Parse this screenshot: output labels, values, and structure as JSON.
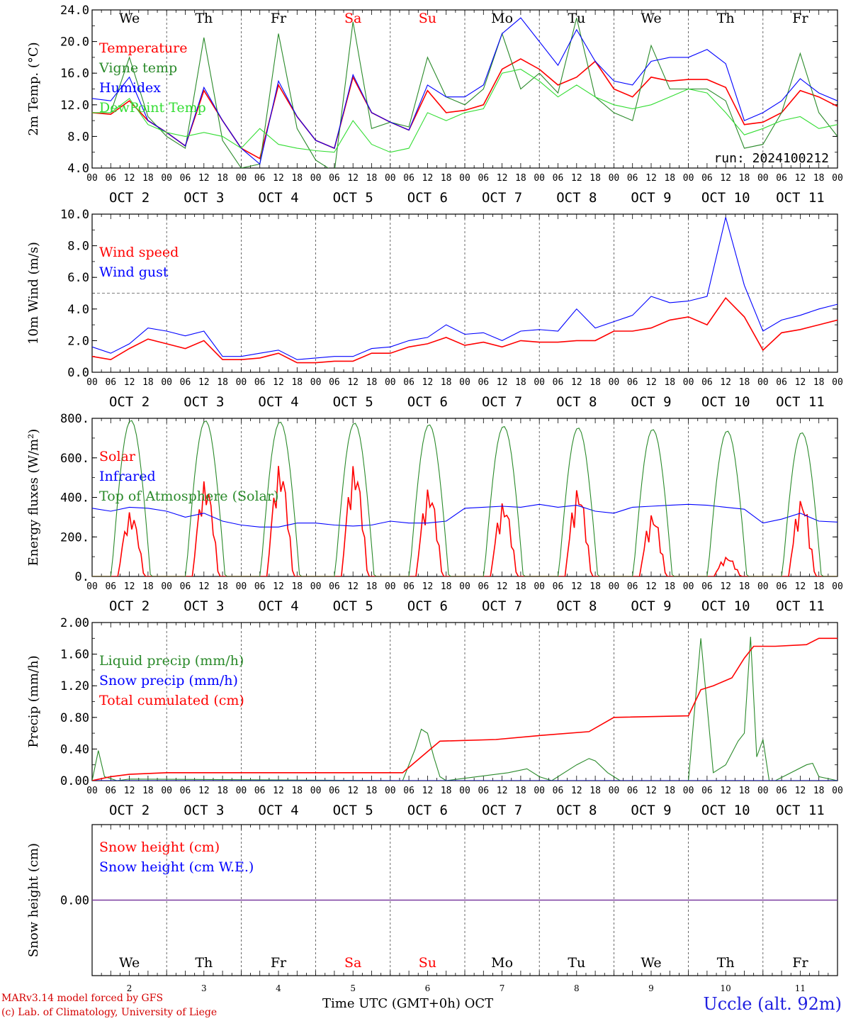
{
  "meteogram": {
    "run_label": "run: 2024100212",
    "station": "Uccle (alt. 92m)",
    "credit_line1": "MARv3.14 model forced by GFS",
    "credit_line2": "(c) Lab. of Climatology, University of Liege",
    "x_title": "Time UTC (GMT+0h) OCT",
    "hour_ticks": [
      "00",
      "06",
      "12",
      "18"
    ],
    "days": [
      {
        "weekday": "We",
        "date": "OCT  2",
        "num": "2",
        "weekend": false
      },
      {
        "weekday": "Th",
        "date": "OCT  3",
        "num": "3",
        "weekend": false
      },
      {
        "weekday": "Fr",
        "date": "OCT  4",
        "num": "4",
        "weekend": false
      },
      {
        "weekday": "Sa",
        "date": "OCT  5",
        "num": "5",
        "weekend": true
      },
      {
        "weekday": "Su",
        "date": "OCT  6",
        "num": "6",
        "weekend": true
      },
      {
        "weekday": "Mo",
        "date": "OCT  7",
        "num": "7",
        "weekend": false
      },
      {
        "weekday": "Tu",
        "date": "OCT  8",
        "num": "8",
        "weekend": false
      },
      {
        "weekday": "We",
        "date": "OCT  9",
        "num": "9",
        "weekend": false
      },
      {
        "weekday": "Th",
        "date": "OCT 10",
        "num": "10",
        "weekend": false
      },
      {
        "weekday": "Fr",
        "date": "OCT 11",
        "num": "11",
        "weekend": false
      }
    ],
    "colors": {
      "red": "#ff0000",
      "green": "#2a8a2a",
      "blue": "#0000ff",
      "lightgreen": "#33dd33",
      "weekend": "#ff0000"
    }
  },
  "chart_data": [
    {
      "type": "line",
      "ylabel": "2m Temp. (°C)",
      "ylim": [
        4,
        24
      ],
      "yticks": [
        4,
        8,
        12,
        16,
        20,
        24
      ],
      "ytick_labels": [
        "4.0",
        "8.0",
        "12.0",
        "16.0",
        "20.0",
        "24.0"
      ],
      "x_unit": "hours since OCT 2 00 UTC",
      "xlim": [
        0,
        240
      ],
      "show_weekdays": true,
      "series": [
        {
          "name": "Temperature",
          "color": "red",
          "x": [
            0,
            6,
            12,
            18,
            24,
            30,
            36,
            42,
            48,
            54,
            60,
            66,
            72,
            78,
            84,
            90,
            96,
            102,
            108,
            114,
            120,
            126,
            132,
            138,
            144,
            150,
            156,
            162,
            168,
            174,
            180,
            186,
            192,
            198,
            204,
            210,
            216,
            222,
            228,
            234,
            240
          ],
          "y": [
            11,
            10.8,
            12.5,
            10,
            8.5,
            6.8,
            13.8,
            10,
            6.5,
            5.2,
            14.5,
            10.5,
            7.5,
            6.5,
            15.5,
            11,
            9.8,
            8.8,
            13.8,
            11,
            11.3,
            12,
            16.5,
            17.8,
            16.5,
            14.5,
            15.5,
            17.5,
            14,
            13,
            15.5,
            15,
            15.2,
            15.2,
            14.2,
            9.5,
            9.8,
            11,
            13.8,
            13,
            11.8
          ]
        },
        {
          "name": "Vigne temp",
          "color": "green",
          "x": [
            0,
            6,
            12,
            18,
            24,
            30,
            36,
            42,
            48,
            54,
            60,
            66,
            72,
            78,
            84,
            90,
            96,
            102,
            108,
            114,
            120,
            126,
            132,
            138,
            144,
            150,
            156,
            162,
            168,
            174,
            180,
            186,
            192,
            198,
            204,
            210,
            216,
            222,
            228,
            234,
            240
          ],
          "y": [
            11,
            11,
            18,
            10.5,
            8,
            6.5,
            20.5,
            7.5,
            4,
            4.5,
            21,
            9,
            5,
            3.5,
            22.5,
            9,
            9.8,
            9.2,
            18,
            13,
            12,
            14,
            21,
            14,
            16,
            13.5,
            23,
            13,
            11,
            10,
            19.5,
            14,
            14,
            14,
            12.5,
            6.5,
            7,
            11,
            18.5,
            11,
            8
          ]
        },
        {
          "name": "Humidex",
          "color": "blue",
          "x": [
            0,
            6,
            12,
            18,
            24,
            30,
            36,
            42,
            48,
            54,
            60,
            66,
            72,
            78,
            84,
            90,
            96,
            102,
            108,
            114,
            120,
            126,
            132,
            138,
            144,
            150,
            156,
            162,
            168,
            174,
            180,
            186,
            192,
            198,
            204,
            210,
            216,
            222,
            228,
            234,
            240
          ],
          "y": [
            12.8,
            12.5,
            15.5,
            10,
            8.5,
            6.8,
            14.2,
            10,
            6.5,
            4.5,
            15,
            10.5,
            7.5,
            6.5,
            15.8,
            11,
            9.8,
            8.8,
            14.5,
            13,
            13,
            14.5,
            21,
            23,
            20,
            17,
            21.5,
            17.5,
            15,
            14.5,
            17.5,
            18,
            18,
            19,
            17.2,
            10,
            11,
            12.5,
            15.3,
            13.5,
            12.5
          ]
        },
        {
          "name": "DewPoint Temp",
          "color": "lightgreen",
          "x": [
            0,
            6,
            12,
            18,
            24,
            30,
            36,
            42,
            48,
            54,
            60,
            66,
            72,
            78,
            84,
            90,
            96,
            102,
            108,
            114,
            120,
            126,
            132,
            138,
            144,
            150,
            156,
            162,
            168,
            174,
            180,
            186,
            192,
            198,
            204,
            210,
            216,
            222,
            228,
            234,
            240
          ],
          "y": [
            11,
            11,
            12.8,
            9.5,
            8.5,
            8,
            8.5,
            8,
            6.5,
            9,
            7,
            6.5,
            6.2,
            6,
            10,
            7,
            6,
            6.5,
            11,
            10,
            11,
            11.5,
            16,
            16.5,
            15,
            13,
            14.5,
            13,
            12,
            11.5,
            12,
            13,
            14,
            13.5,
            11,
            8.2,
            9,
            10,
            10.5,
            9,
            9.5
          ]
        }
      ]
    },
    {
      "type": "line",
      "ylabel": "10m Wind (m/s)",
      "ylim": [
        0,
        10
      ],
      "yticks": [
        0,
        2,
        4,
        6,
        8,
        10
      ],
      "ytick_labels": [
        "0.0",
        "2.0",
        "4.0",
        "6.0",
        "8.0",
        "10.0"
      ],
      "x_unit": "hours since OCT 2 00 UTC",
      "xlim": [
        0,
        240
      ],
      "reference_line": 5,
      "series": [
        {
          "name": "Wind speed",
          "color": "red",
          "x": [
            0,
            6,
            12,
            18,
            24,
            30,
            36,
            42,
            48,
            54,
            60,
            66,
            72,
            78,
            84,
            90,
            96,
            102,
            108,
            114,
            120,
            126,
            132,
            138,
            144,
            150,
            156,
            162,
            168,
            174,
            180,
            186,
            192,
            198,
            204,
            210,
            216,
            222,
            228,
            234,
            240
          ],
          "y": [
            1,
            0.8,
            1.5,
            2.1,
            1.8,
            1.5,
            2,
            0.8,
            0.8,
            0.9,
            1.2,
            0.6,
            0.6,
            0.7,
            0.7,
            1.2,
            1.2,
            1.6,
            1.8,
            2.2,
            1.7,
            1.9,
            1.6,
            2,
            1.9,
            1.9,
            2,
            2,
            2.6,
            2.6,
            2.8,
            3.3,
            3.5,
            3,
            4.7,
            3.5,
            1.4,
            2.5,
            2.7,
            3,
            3.3
          ]
        },
        {
          "name": "Wind gust",
          "color": "blue",
          "x": [
            0,
            6,
            12,
            18,
            24,
            30,
            36,
            42,
            48,
            54,
            60,
            66,
            72,
            78,
            84,
            90,
            96,
            102,
            108,
            114,
            120,
            126,
            132,
            138,
            144,
            150,
            156,
            162,
            168,
            174,
            180,
            186,
            192,
            198,
            204,
            210,
            216,
            222,
            228,
            234,
            240
          ],
          "y": [
            1.6,
            1.2,
            1.8,
            2.8,
            2.6,
            2.3,
            2.6,
            1,
            1,
            1.2,
            1.4,
            0.8,
            0.9,
            1,
            1,
            1.5,
            1.6,
            2,
            2.2,
            3,
            2.4,
            2.5,
            2,
            2.6,
            2.7,
            2.6,
            4,
            2.8,
            3.2,
            3.6,
            4.8,
            4.4,
            4.5,
            4.8,
            9.8,
            5.5,
            2.6,
            3.3,
            3.6,
            4,
            4.3
          ]
        }
      ]
    },
    {
      "type": "line",
      "ylabel": "Energy fluxes (W/m²)",
      "ylim": [
        0,
        800
      ],
      "yticks": [
        0,
        200,
        400,
        600,
        800
      ],
      "ytick_labels": [
        "0.",
        "200.",
        "400.",
        "600.",
        "800."
      ],
      "x_unit": "hours since OCT 2 00 UTC",
      "xlim": [
        0,
        240
      ],
      "series": [
        {
          "name": "Solar",
          "color": "red",
          "peaks": [
            330,
            490,
            570,
            570,
            450,
            380,
            450,
            320,
            100,
            400
          ]
        },
        {
          "name": "Infrared",
          "color": "blue",
          "x": [
            0,
            6,
            12,
            18,
            24,
            30,
            36,
            42,
            48,
            54,
            60,
            66,
            72,
            78,
            84,
            90,
            96,
            102,
            108,
            114,
            120,
            126,
            132,
            138,
            144,
            150,
            156,
            162,
            168,
            174,
            180,
            186,
            192,
            198,
            204,
            210,
            216,
            222,
            228,
            234,
            240
          ],
          "y": [
            345,
            330,
            350,
            345,
            330,
            300,
            320,
            280,
            260,
            250,
            250,
            270,
            270,
            260,
            255,
            260,
            280,
            270,
            270,
            280,
            345,
            350,
            355,
            350,
            365,
            350,
            360,
            330,
            320,
            350,
            355,
            360,
            365,
            360,
            350,
            340,
            270,
            290,
            320,
            280,
            275
          ]
        },
        {
          "name": "Top of Atmosphere (Solar)",
          "color": "green",
          "peaks": [
            790,
            788,
            782,
            776,
            768,
            760,
            752,
            744,
            736,
            728
          ]
        }
      ]
    },
    {
      "type": "line",
      "ylabel": "Precip (mm/h)",
      "ylim": [
        0,
        2
      ],
      "yticks": [
        0,
        0.4,
        0.8,
        1.2,
        1.6,
        2.0
      ],
      "ytick_labels": [
        "0.00",
        "0.40",
        "0.80",
        "1.20",
        "1.60",
        "2.00"
      ],
      "x_unit": "hours since OCT 2 00 UTC",
      "xlim": [
        0,
        240
      ],
      "series": [
        {
          "name": "Liquid precip (mm/h)",
          "color": "green",
          "x": [
            0,
            2,
            4,
            8,
            12,
            100,
            104,
            106,
            108,
            110,
            112,
            114,
            130,
            134,
            140,
            144,
            148,
            156,
            160,
            162,
            166,
            170,
            180,
            192,
            196,
            200,
            204,
            208,
            210,
            212,
            214,
            216,
            218,
            220,
            230,
            232,
            234,
            240
          ],
          "y": [
            0,
            0.38,
            0.05,
            0,
            0.02,
            0,
            0.4,
            0.65,
            0.6,
            0.3,
            0.05,
            0,
            0.08,
            0.1,
            0.15,
            0.05,
            0,
            0.2,
            0.28,
            0.25,
            0.1,
            0,
            0,
            0,
            1.8,
            0.1,
            0.2,
            0.5,
            0.6,
            1.82,
            0.3,
            0.52,
            0,
            0,
            0.2,
            0.22,
            0.05,
            0
          ]
        },
        {
          "name": "Snow precip (mm/h)",
          "color": "blue",
          "x": [
            0,
            240
          ],
          "y": [
            0,
            0
          ]
        },
        {
          "name": "Total cumulated (cm)",
          "color": "red",
          "x": [
            0,
            6,
            12,
            24,
            100,
            106,
            112,
            130,
            144,
            160,
            168,
            192,
            196,
            200,
            206,
            210,
            213,
            220,
            230,
            234,
            240
          ],
          "y": [
            0,
            0.05,
            0.08,
            0.1,
            0.1,
            0.3,
            0.5,
            0.52,
            0.57,
            0.62,
            0.8,
            0.82,
            1.15,
            1.2,
            1.3,
            1.55,
            1.7,
            1.7,
            1.72,
            1.8,
            1.8
          ]
        }
      ]
    },
    {
      "type": "line",
      "ylabel": "Snow height (cm)",
      "ylim": [
        -1,
        1
      ],
      "yticks": [
        0
      ],
      "ytick_labels": [
        "0.00"
      ],
      "x_unit": "hours since OCT 2 00 UTC",
      "xlim": [
        0,
        240
      ],
      "bottom_panel": true,
      "series": [
        {
          "name": "Snow height (cm)",
          "color": "red",
          "x": [
            0,
            240
          ],
          "y": [
            0,
            0
          ]
        },
        {
          "name": "Snow height (cm W.E.)",
          "color": "blue",
          "x": [
            0,
            240
          ],
          "y": [
            0,
            0
          ]
        }
      ]
    }
  ]
}
